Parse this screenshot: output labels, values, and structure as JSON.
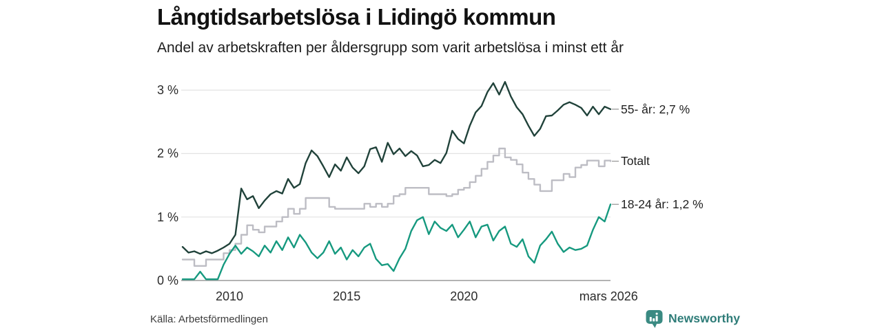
{
  "header": {
    "title": "Långtidsarbetslösa i Lidingö kommun",
    "subtitle": "Andel av arbetskraften per åldersgrupp som varit arbetslösa i minst ett år"
  },
  "footer": {
    "source": "Källa: Arbetsförmedlingen",
    "brand_name": "Newsworthy"
  },
  "colors": {
    "series_55": "#20423a",
    "series_total": "#bdbdc4",
    "series_18_24": "#16997f",
    "grid": "#e3e3e3",
    "zero_axis": "#9a9a9a",
    "connector": "#9a9a9a",
    "tick_text": "#2b2b2b",
    "brand": "#2e7c78",
    "brand_icon": "#3a8a82"
  },
  "chart_data": {
    "type": "line",
    "title": "Långtidsarbetslösa i Lidingö kommun",
    "subtitle": "Andel av arbetskraften per åldersgrupp som varit arbetslösa i minst ett år",
    "x_start": 2008.0,
    "x_step": 0.25,
    "xlim": [
      2008.0,
      2026.25
    ],
    "ylim": [
      0,
      3
    ],
    "grid": "horizontal",
    "legend_position": "right-of-line-ends",
    "yticks": [
      {
        "value": 3,
        "label": "3 %"
      },
      {
        "value": 2,
        "label": "2 %"
      },
      {
        "value": 1,
        "label": "1 %"
      },
      {
        "value": 0,
        "label": "0 %"
      }
    ],
    "xticks": [
      {
        "value": 2010,
        "label": "2010"
      },
      {
        "value": 2015,
        "label": "2015"
      },
      {
        "value": 2020,
        "label": "2020"
      },
      {
        "value": 2026.17,
        "label": "mars 2026"
      }
    ],
    "series": [
      {
        "name": "55- år",
        "end_label": "55- år: 2,7 %",
        "last_value": "2,7 %",
        "color": "#20423a",
        "step": false,
        "values": [
          0.53,
          0.44,
          0.46,
          0.42,
          0.46,
          0.43,
          0.47,
          0.52,
          0.58,
          0.72,
          1.45,
          1.28,
          1.33,
          1.14,
          1.26,
          1.36,
          1.41,
          1.37,
          1.6,
          1.46,
          1.52,
          1.85,
          2.05,
          1.96,
          1.8,
          1.63,
          1.83,
          1.73,
          1.94,
          1.78,
          1.69,
          1.8,
          2.07,
          2.1,
          1.87,
          2.17,
          1.99,
          2.08,
          1.96,
          2.04,
          1.97,
          1.8,
          1.82,
          1.9,
          1.85,
          2.01,
          2.36,
          2.23,
          2.16,
          2.44,
          2.65,
          2.75,
          2.97,
          3.11,
          2.93,
          3.13,
          2.9,
          2.73,
          2.62,
          2.44,
          2.28,
          2.39,
          2.59,
          2.6,
          2.68,
          2.77,
          2.81,
          2.77,
          2.72,
          2.6,
          2.74,
          2.62,
          2.74,
          2.7
        ]
      },
      {
        "name": "Totalt",
        "end_label": "Totalt",
        "last_value": "1,9 %",
        "color": "#bdbdc4",
        "step": true,
        "values": [
          0.33,
          0.33,
          0.23,
          0.23,
          0.33,
          0.33,
          0.33,
          0.43,
          0.48,
          0.58,
          0.72,
          0.87,
          0.8,
          0.76,
          0.85,
          0.85,
          0.93,
          1.0,
          1.13,
          1.05,
          1.13,
          1.3,
          1.3,
          1.3,
          1.3,
          1.16,
          1.13,
          1.13,
          1.13,
          1.13,
          1.13,
          1.21,
          1.16,
          1.21,
          1.16,
          1.21,
          1.33,
          1.36,
          1.46,
          1.46,
          1.46,
          1.46,
          1.36,
          1.36,
          1.36,
          1.33,
          1.36,
          1.43,
          1.46,
          1.55,
          1.65,
          1.76,
          1.87,
          1.97,
          2.08,
          1.94,
          1.9,
          1.83,
          1.7,
          1.6,
          1.51,
          1.41,
          1.41,
          1.58,
          1.58,
          1.68,
          1.63,
          1.78,
          1.82,
          1.89,
          1.89,
          1.8,
          1.89,
          1.88
        ]
      },
      {
        "name": "18-24 år",
        "end_label": "18-24 år: 1,2 %",
        "last_value": "1,2 %",
        "color": "#16997f",
        "step": false,
        "values": [
          0.02,
          0.02,
          0.02,
          0.14,
          0.02,
          0.02,
          0.02,
          0.25,
          0.42,
          0.55,
          0.42,
          0.52,
          0.46,
          0.38,
          0.55,
          0.44,
          0.62,
          0.48,
          0.68,
          0.52,
          0.72,
          0.6,
          0.44,
          0.35,
          0.44,
          0.62,
          0.42,
          0.52,
          0.33,
          0.48,
          0.38,
          0.52,
          0.58,
          0.34,
          0.24,
          0.26,
          0.15,
          0.35,
          0.5,
          0.78,
          0.95,
          1.0,
          0.73,
          0.93,
          0.83,
          0.78,
          0.88,
          0.68,
          0.8,
          0.93,
          0.68,
          0.85,
          0.88,
          0.63,
          0.78,
          0.85,
          0.58,
          0.53,
          0.65,
          0.38,
          0.28,
          0.55,
          0.65,
          0.77,
          0.58,
          0.45,
          0.52,
          0.48,
          0.5,
          0.55,
          0.8,
          1.0,
          0.93,
          1.2
        ]
      }
    ]
  }
}
